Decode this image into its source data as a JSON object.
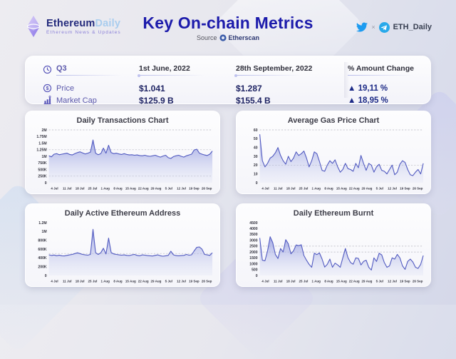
{
  "header": {
    "logo_part1": "Ethereum",
    "logo_part2": "Daily",
    "tagline": "Ethereum News & Updates",
    "title": "Key On-chain Metrics",
    "source_label": "Source",
    "source_name": "Etherscan",
    "social_sep": "×",
    "social_handle": "ETH_Daily"
  },
  "stats": {
    "period": "Q3",
    "date_start": "1st June, 2022",
    "date_end": "28th September, 2022",
    "change_header": "% Amount Change",
    "rows": [
      {
        "label": "Price",
        "start": "$1.041",
        "end": "$1.287",
        "change": "▲ 19,11 %"
      },
      {
        "label": "Market Cap",
        "start": "$125.9 B",
        "end": "$155.4 B",
        "change": "▲ 18,95 %"
      }
    ]
  },
  "icons": {
    "logo": "ethereum-diamond",
    "source": "etherscan-circle",
    "social": [
      "twitter-bird",
      "telegram-plane"
    ],
    "table": [
      "clock",
      "dollar-circle",
      "bar-chart"
    ]
  },
  "colors": {
    "title_navy": "#1c1bab",
    "chart_line": "#5059c0",
    "chart_fill": "#8890dc",
    "label_purple": "#5b58ab",
    "value_navy": "#1e2363",
    "twitter_blue": "#1d9bf0",
    "telegram_blue": "#29a9ea"
  },
  "chart_data": [
    {
      "type": "area",
      "title": "Daily Transactions Chart",
      "x_labels": [
        "4 Jul",
        "11 Jul",
        "18 Jul",
        "25 Jul",
        "1 Aug",
        "8 Aug",
        "15 Aug",
        "22 Aug",
        "29 Aug",
        "5 Jul",
        "12 Jul",
        "19 Sep",
        "26 Sep"
      ],
      "ylim": [
        0,
        2
      ],
      "yticks": [
        {
          "v": 2,
          "label": "2M"
        },
        {
          "v": 1.75,
          "label": "1.75M"
        },
        {
          "v": 1.5,
          "label": "1.5M"
        },
        {
          "v": 1.25,
          "label": "1.25M"
        },
        {
          "v": 1,
          "label": "1M"
        },
        {
          "v": 0.75,
          "label": "750K"
        },
        {
          "v": 0.5,
          "label": "500K"
        },
        {
          "v": 0.25,
          "label": "250K"
        },
        {
          "v": 0,
          "label": "0"
        }
      ],
      "grid": [
        2,
        1.25,
        0.25
      ],
      "values": [
        1.02,
        0.98,
        1.08,
        1.1,
        1.06,
        1.08,
        1.1,
        1.12,
        1.07,
        1.05,
        1.1,
        1.14,
        1.17,
        1.13,
        1.09,
        1.12,
        1.16,
        1.62,
        1.12,
        1.06,
        1.1,
        1.31,
        1.12,
        1.42,
        1.14,
        1.1,
        1.12,
        1.09,
        1.07,
        1.1,
        1.07,
        1.05,
        1.06,
        1.04,
        1.05,
        1.03,
        1.02,
        1.04,
        1.01,
        1.0,
        1.02,
        1.04,
        1.0,
        0.97,
        1.01,
        1.04,
        0.95,
        0.92,
        0.99,
        1.02,
        1.04,
        1.0,
        0.97,
        1.02,
        1.05,
        1.08,
        1.24,
        1.27,
        1.12,
        1.08,
        1.05,
        1.03,
        1.08,
        1.2
      ]
    },
    {
      "type": "area",
      "title": "Average Gas Price Chart",
      "x_labels": [
        "4 Jul",
        "11 Jul",
        "18 Jul",
        "25 Jul",
        "1 Aug",
        "8 Aug",
        "15 Aug",
        "22 Aug",
        "29 Aug",
        "5 Jul",
        "12 Jul",
        "19 Sep",
        "26 Sep"
      ],
      "ylim": [
        0,
        60
      ],
      "yticks": [
        {
          "v": 60,
          "label": "60"
        },
        {
          "v": 50,
          "label": "50"
        },
        {
          "v": 40,
          "label": "40"
        },
        {
          "v": 30,
          "label": "30"
        },
        {
          "v": 20,
          "label": "20"
        },
        {
          "v": 10,
          "label": "10"
        },
        {
          "v": 0,
          "label": "0"
        }
      ],
      "grid": [
        60,
        20
      ],
      "values": [
        55,
        25,
        18,
        22,
        28,
        30,
        34,
        40,
        31,
        25,
        21,
        30,
        24,
        28,
        35,
        31,
        33,
        36,
        28,
        18,
        25,
        35,
        33,
        24,
        14,
        13,
        20,
        25,
        22,
        26,
        18,
        12,
        15,
        22,
        16,
        15,
        13,
        22,
        17,
        31,
        22,
        14,
        22,
        20,
        12,
        18,
        21,
        14,
        13,
        10,
        15,
        20,
        9,
        12,
        21,
        25,
        23,
        15,
        9,
        8,
        12,
        15,
        10,
        22
      ]
    },
    {
      "type": "area",
      "title": "Daily Active Ethereum Address",
      "x_labels": [
        "4 Jul",
        "11 Jul",
        "18 Jul",
        "25 Jul",
        "1 Aug",
        "8 Aug",
        "15 Aug",
        "22 Aug",
        "29 Aug",
        "5 Jul",
        "12 Jul",
        "19 Sep",
        "26 Sep"
      ],
      "ylim": [
        0,
        1200
      ],
      "yticks": [
        {
          "v": 1200,
          "label": "1.2M"
        },
        {
          "v": 1000,
          "label": "1M"
        },
        {
          "v": 800,
          "label": "800K"
        },
        {
          "v": 600,
          "label": "600K"
        },
        {
          "v": 400,
          "label": "400K"
        },
        {
          "v": 200,
          "label": "200K"
        },
        {
          "v": 0,
          "label": "0"
        }
      ],
      "grid": [
        500
      ],
      "values": [
        470,
        455,
        465,
        450,
        460,
        448,
        445,
        458,
        468,
        478,
        498,
        515,
        498,
        478,
        468,
        462,
        478,
        1050,
        520,
        478,
        515,
        620,
        490,
        850,
        520,
        490,
        478,
        468,
        462,
        468,
        458,
        452,
        468,
        478,
        458,
        448,
        468,
        462,
        452,
        448,
        442,
        458,
        468,
        448,
        438,
        448,
        458,
        552,
        470,
        452,
        448,
        452,
        458,
        478,
        462,
        470,
        560,
        640,
        648,
        598,
        478,
        468,
        458,
        518
      ]
    },
    {
      "type": "area",
      "title": "Daily Ethereum Burnt",
      "x_labels": [
        "4 Jul",
        "11 Jul",
        "18 Jul",
        "25 Jul",
        "1 Aug",
        "8 Aug",
        "15 Aug",
        "22 Aug",
        "29 Aug",
        "5 Jul",
        "12 Jul",
        "19 Sep",
        "26 Sep"
      ],
      "ylim": [
        0,
        4500
      ],
      "yticks": [
        {
          "v": 4500,
          "label": "4500"
        },
        {
          "v": 4000,
          "label": "4000"
        },
        {
          "v": 3500,
          "label": "3500"
        },
        {
          "v": 3000,
          "label": "3000"
        },
        {
          "v": 2500,
          "label": "2500"
        },
        {
          "v": 2000,
          "label": "2000"
        },
        {
          "v": 1500,
          "label": "1500"
        },
        {
          "v": 1000,
          "label": "1000"
        },
        {
          "v": 500,
          "label": "500"
        },
        {
          "v": 0,
          "label": "0"
        }
      ],
      "grid": [
        2500,
        2000
      ],
      "values": [
        3200,
        1300,
        1250,
        2100,
        3300,
        2800,
        1800,
        1450,
        2300,
        2000,
        3050,
        2700,
        1850,
        2100,
        2600,
        2550,
        2620,
        1700,
        1300,
        950,
        700,
        1900,
        1780,
        1920,
        1400,
        720,
        950,
        1400,
        700,
        1050,
        900,
        700,
        1500,
        2300,
        1520,
        1100,
        960,
        1500,
        1460,
        900,
        1200,
        1300,
        700,
        460,
        1500,
        1200,
        1900,
        1760,
        1100,
        700,
        820,
        1500,
        1400,
        1800,
        1500,
        820,
        520,
        1200,
        1400,
        1150,
        700,
        600,
        950,
        1700
      ]
    }
  ]
}
